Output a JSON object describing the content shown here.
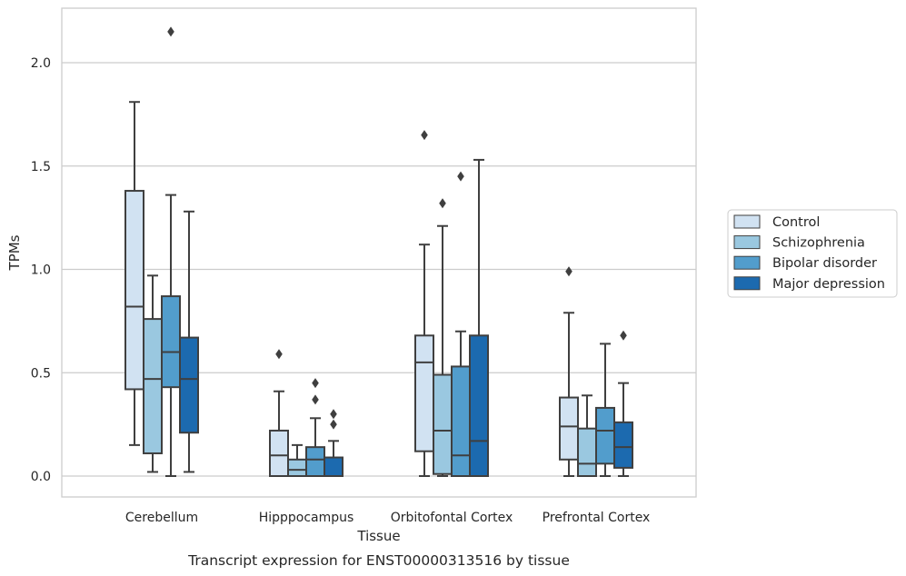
{
  "chart_data": {
    "type": "box",
    "caption": "Transcript expression for ENST00000313516 by tissue",
    "xlabel": "Tissue",
    "ylabel": "TPMs",
    "ylim": [
      -0.1,
      2.27
    ],
    "yticks": [
      0.0,
      0.5,
      1.0,
      1.5,
      2.0
    ],
    "ytick_labels": [
      "0.0",
      "0.5",
      "1.0",
      "1.5",
      "2.0"
    ],
    "grid": "horizontal",
    "legend_position": "right",
    "categories": [
      "Cerebellum",
      "Hipppocampus",
      "Orbitofontal Cortex",
      "Prefrontal Cortex"
    ],
    "series": [
      {
        "name": "Control",
        "color": "#d1e2f2",
        "boxes": [
          {
            "whislo": 0.15,
            "q1": 0.42,
            "med": 0.82,
            "q3": 1.38,
            "whishi": 1.81,
            "fliers": []
          },
          {
            "whislo": 0.0,
            "q1": 0.0,
            "med": 0.1,
            "q3": 0.22,
            "whishi": 0.41,
            "fliers": [
              0.59
            ]
          },
          {
            "whislo": 0.0,
            "q1": 0.12,
            "med": 0.55,
            "q3": 0.68,
            "whishi": 1.12,
            "fliers": [
              1.65
            ]
          },
          {
            "whislo": 0.0,
            "q1": 0.08,
            "med": 0.24,
            "q3": 0.38,
            "whishi": 0.79,
            "fliers": [
              0.99
            ]
          }
        ]
      },
      {
        "name": "Schizophrenia",
        "color": "#9ac8e0",
        "boxes": [
          {
            "whislo": 0.02,
            "q1": 0.11,
            "med": 0.47,
            "q3": 0.76,
            "whishi": 0.97,
            "fliers": []
          },
          {
            "whislo": 0.0,
            "q1": 0.0,
            "med": 0.03,
            "q3": 0.08,
            "whishi": 0.15,
            "fliers": []
          },
          {
            "whislo": 0.0,
            "q1": 0.01,
            "med": 0.22,
            "q3": 0.49,
            "whishi": 1.21,
            "fliers": [
              1.32
            ]
          },
          {
            "whislo": 0.0,
            "q1": 0.0,
            "med": 0.06,
            "q3": 0.23,
            "whishi": 0.39,
            "fliers": []
          }
        ]
      },
      {
        "name": "Bipolar disorder",
        "color": "#529dcc",
        "boxes": [
          {
            "whislo": 0.0,
            "q1": 0.43,
            "med": 0.6,
            "q3": 0.87,
            "whishi": 1.36,
            "fliers": [
              2.15
            ]
          },
          {
            "whislo": 0.0,
            "q1": 0.0,
            "med": 0.08,
            "q3": 0.14,
            "whishi": 0.28,
            "fliers": [
              0.37,
              0.45
            ]
          },
          {
            "whislo": 0.0,
            "q1": 0.0,
            "med": 0.1,
            "q3": 0.53,
            "whishi": 0.7,
            "fliers": [
              1.45
            ]
          },
          {
            "whislo": 0.0,
            "q1": 0.06,
            "med": 0.22,
            "q3": 0.33,
            "whishi": 0.64,
            "fliers": []
          }
        ]
      },
      {
        "name": "Major depression",
        "color": "#1c6aaf",
        "boxes": [
          {
            "whislo": 0.02,
            "q1": 0.21,
            "med": 0.47,
            "q3": 0.67,
            "whishi": 1.28,
            "fliers": []
          },
          {
            "whislo": 0.0,
            "q1": 0.0,
            "med": 0.0,
            "q3": 0.09,
            "whishi": 0.17,
            "fliers": [
              0.25,
              0.3
            ]
          },
          {
            "whislo": 0.0,
            "q1": 0.0,
            "med": 0.17,
            "q3": 0.68,
            "whishi": 1.53,
            "fliers": []
          },
          {
            "whislo": 0.0,
            "q1": 0.04,
            "med": 0.14,
            "q3": 0.26,
            "whishi": 0.45,
            "fliers": [
              0.68
            ]
          }
        ]
      }
    ]
  }
}
